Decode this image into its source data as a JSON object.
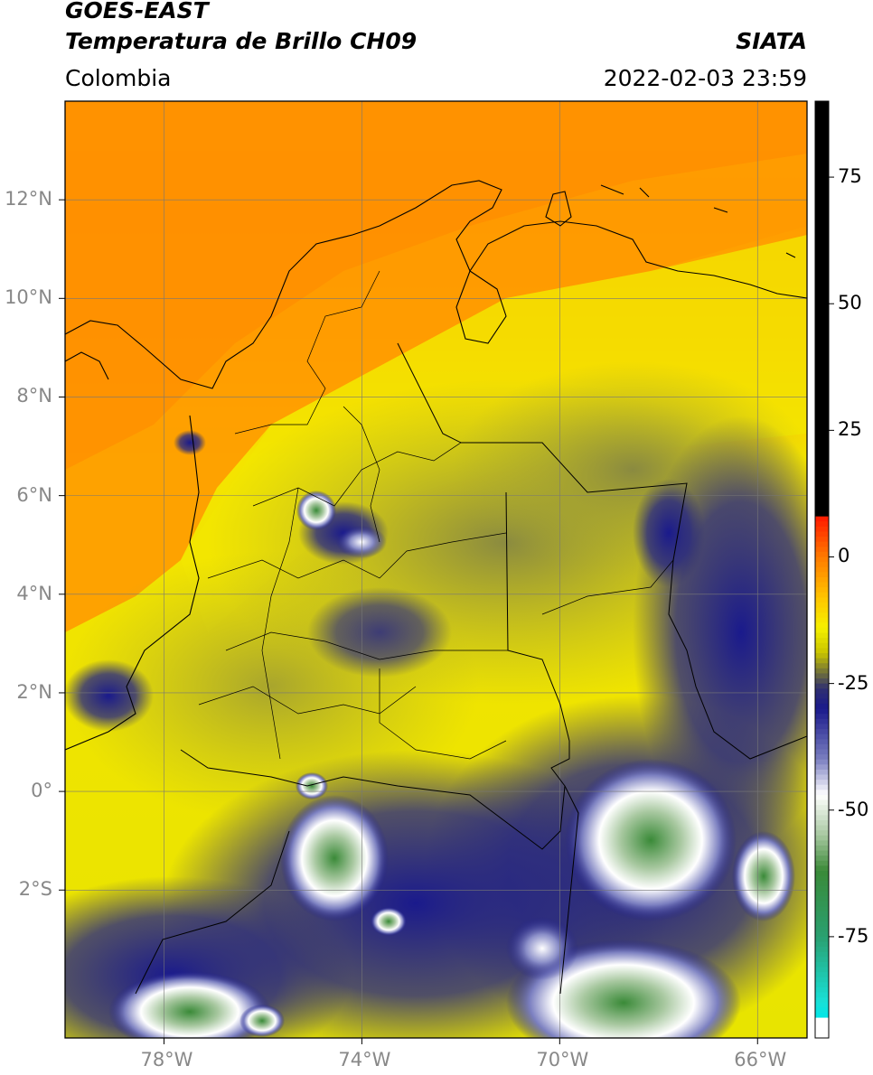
{
  "header": {
    "satellite": "GOES-EAST",
    "product": "Temperatura de Brillo CH09",
    "region": "Colombia",
    "source": "SIATA",
    "datetime": "2022-02-03 23:59"
  },
  "map": {
    "lon_range": [
      -80,
      -65
    ],
    "lat_range": [
      -5,
      14
    ],
    "lon_ticks": [
      {
        "value": -78,
        "label": "78°W"
      },
      {
        "value": -74,
        "label": "74°W"
      },
      {
        "value": -70,
        "label": "70°W"
      },
      {
        "value": -66,
        "label": "66°W"
      }
    ],
    "lat_ticks": [
      {
        "value": 12,
        "label": "12°N"
      },
      {
        "value": 10,
        "label": "10°N"
      },
      {
        "value": 8,
        "label": "8°N"
      },
      {
        "value": 6,
        "label": "6°N"
      },
      {
        "value": 4,
        "label": "4°N"
      },
      {
        "value": 2,
        "label": "2°N"
      },
      {
        "value": 0,
        "label": "0°"
      },
      {
        "value": -2,
        "label": "2°S"
      }
    ],
    "grid": true
  },
  "colorbar": {
    "range": [
      -95,
      90
    ],
    "ticks": [
      {
        "value": 75,
        "label": "75"
      },
      {
        "value": 50,
        "label": "50"
      },
      {
        "value": 25,
        "label": "25"
      },
      {
        "value": 0,
        "label": "0"
      },
      {
        "value": -25,
        "label": "-25"
      },
      {
        "value": -50,
        "label": "-50"
      },
      {
        "value": -75,
        "label": "-75"
      }
    ],
    "stops": [
      {
        "value": 90,
        "color": "#000000"
      },
      {
        "value": 8,
        "color": "#000000"
      },
      {
        "value": 7.9,
        "color": "#ff1a00"
      },
      {
        "value": 0,
        "color": "#ff7a00"
      },
      {
        "value": -8,
        "color": "#ffc400"
      },
      {
        "value": -14,
        "color": "#f6f000"
      },
      {
        "value": -19,
        "color": "#c8c400"
      },
      {
        "value": -23,
        "color": "#6e6e3c"
      },
      {
        "value": -26,
        "color": "#303070"
      },
      {
        "value": -30,
        "color": "#1a1a8c"
      },
      {
        "value": -40,
        "color": "#7b7fc0"
      },
      {
        "value": -47,
        "color": "#ffffff"
      },
      {
        "value": -55,
        "color": "#a8c8a0"
      },
      {
        "value": -62,
        "color": "#3a8a38"
      },
      {
        "value": -75,
        "color": "#2aa070"
      },
      {
        "value": -88,
        "color": "#18e0d8"
      },
      {
        "value": -91,
        "color": "#00e6e6"
      },
      {
        "value": -91.5,
        "color": "#ffffff"
      },
      {
        "value": -95,
        "color": "#ffffff"
      }
    ]
  }
}
